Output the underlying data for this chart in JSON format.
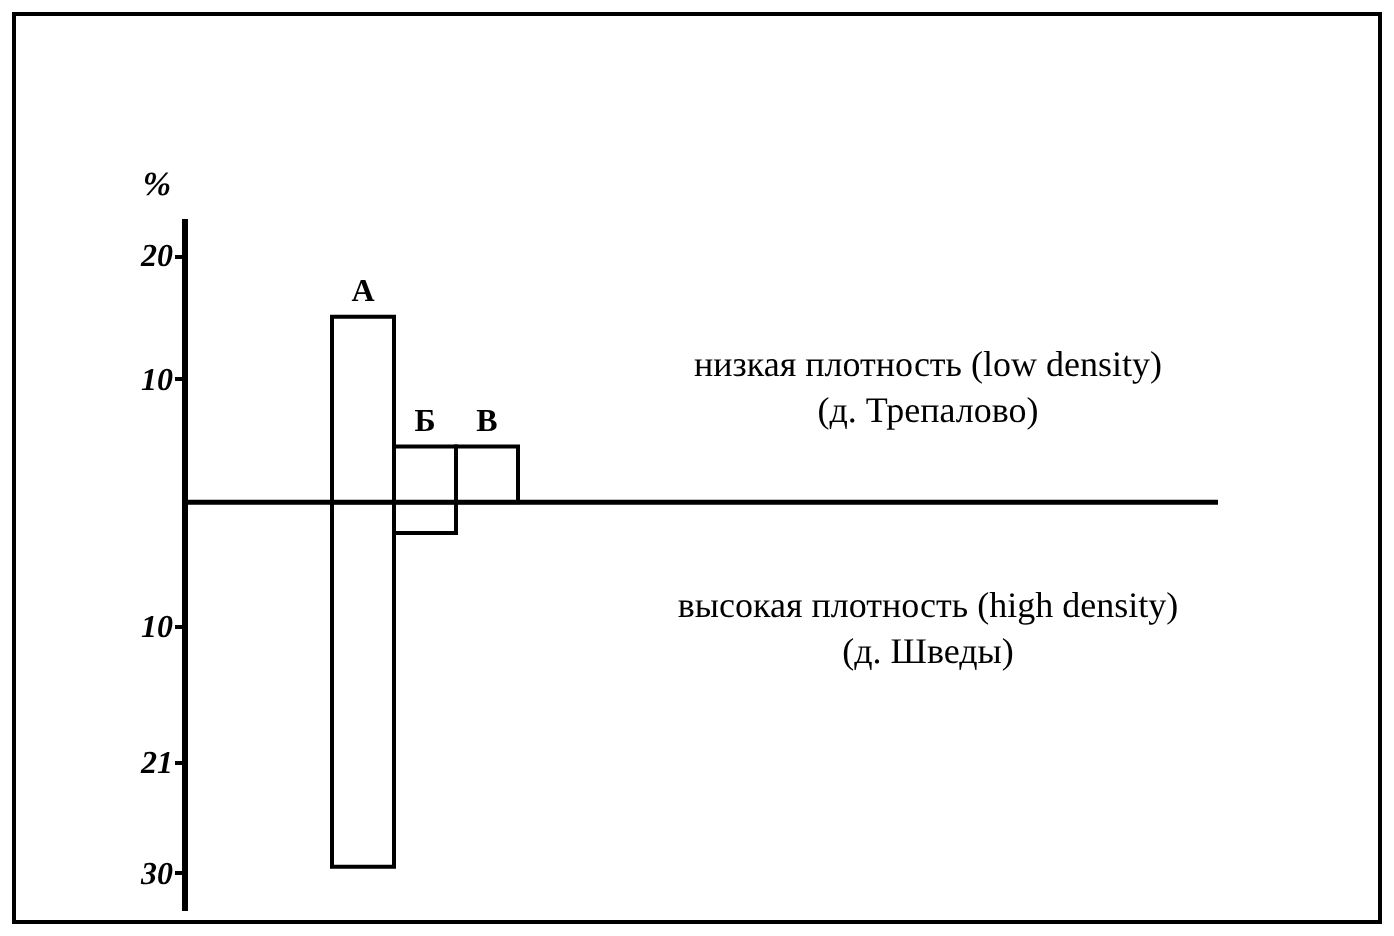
{
  "chart_data": {
    "type": "bar",
    "ylabel": "%",
    "stacked": true,
    "categories": [
      "А",
      "Б",
      "В"
    ],
    "series": [
      {
        "name": "низкая плотность (low density)\n(д. Трепалово)",
        "color": "#ffffff",
        "values": [
          15,
          4.5,
          4.5
        ]
      },
      {
        "name": "высокая плотность (high density)\n(д. Шведы)",
        "color": "#ffffff",
        "values": [
          -29.5,
          -2.5,
          null
        ]
      }
    ],
    "ylim": [
      -33,
      23
    ],
    "yticks": [
      20,
      10,
      {
        "value": -10,
        "label": "10"
      },
      {
        "value": -21,
        "label": "21"
      },
      {
        "value": -30,
        "label": "30"
      }
    ]
  }
}
